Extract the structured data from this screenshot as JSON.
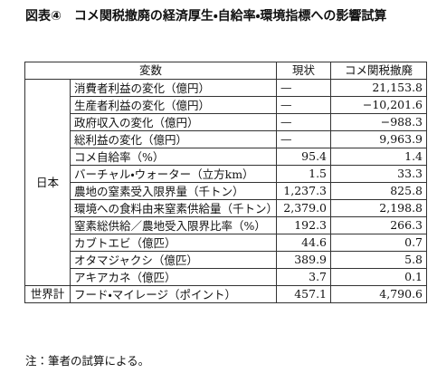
{
  "title": "図表④　コメ関税撤廃の経済厚生・自給率・環境指標への影響試算",
  "table": {
    "header": [
      "変数",
      "現状",
      "コメ関税撤廃"
    ],
    "groups": [
      {
        "label": "日本",
        "rows": [
          [
            "消費者利益の変化（億円）",
            "—",
            "21,153.8"
          ],
          [
            "生産者利益の変化（億円）",
            "—",
            "−10,201.6"
          ],
          [
            "政府収入の変化（億円）",
            "—",
            "−988.3"
          ],
          [
            "総利益の変化（億円）",
            "—",
            "9,963.9"
          ],
          [
            "コメ自給率（%）",
            "95.4",
            "1.4"
          ],
          [
            "バーチャル・ウォーター（立方km）",
            "1.5",
            "33.3"
          ],
          [
            "農地の窒素受入限界量（千トン）",
            "1,237.3",
            "825.8"
          ],
          [
            "環境への食料由来窒素供給量（千トン）",
            "2,379.0",
            "2,198.8"
          ],
          [
            "窒素総供給／農地受入限界比率（%）",
            "192.3",
            "266.3"
          ],
          [
            "カブトエビ（億匹）",
            "44.6",
            "0.7"
          ],
          [
            "オタマジャクシ（億匹）",
            "389.9",
            "5.8"
          ],
          [
            "アキアカネ（億匹）",
            "3.7",
            "0.1"
          ]
        ]
      },
      {
        "label": "世界計",
        "rows": [
          [
            "フード・マイレージ（ポイント）",
            "457.1",
            "4,790.6"
          ]
        ]
      }
    ]
  },
  "note": "注：筆者の試算による。"
}
